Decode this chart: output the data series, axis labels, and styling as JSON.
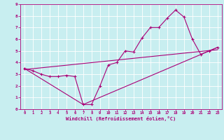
{
  "xlabel": "Windchill (Refroidissement éolien,°C)",
  "bg_color": "#c8eef0",
  "line_color": "#aa0077",
  "grid_color": "#ffffff",
  "xlim": [
    -0.5,
    23.5
  ],
  "ylim": [
    0,
    9
  ],
  "xticks": [
    0,
    1,
    2,
    3,
    4,
    5,
    6,
    7,
    8,
    9,
    10,
    11,
    12,
    13,
    14,
    15,
    16,
    17,
    18,
    19,
    20,
    21,
    22,
    23
  ],
  "yticks": [
    0,
    1,
    2,
    3,
    4,
    5,
    6,
    7,
    8,
    9
  ],
  "line1_x": [
    0,
    1,
    2,
    3,
    4,
    5,
    6,
    7,
    8,
    9,
    10,
    11,
    12,
    13,
    14,
    15,
    16,
    17,
    18,
    19,
    20,
    21,
    22,
    23
  ],
  "line1_y": [
    3.5,
    3.3,
    3.0,
    2.8,
    2.8,
    2.9,
    2.8,
    0.4,
    0.4,
    2.0,
    3.8,
    4.0,
    5.0,
    4.9,
    6.1,
    7.0,
    7.0,
    7.8,
    8.5,
    7.9,
    6.0,
    4.7,
    5.0,
    5.3
  ],
  "line2_x": [
    0,
    7,
    23
  ],
  "line2_y": [
    3.5,
    0.4,
    5.3
  ],
  "line3_x": [
    0,
    23
  ],
  "line3_y": [
    3.4,
    5.1
  ]
}
